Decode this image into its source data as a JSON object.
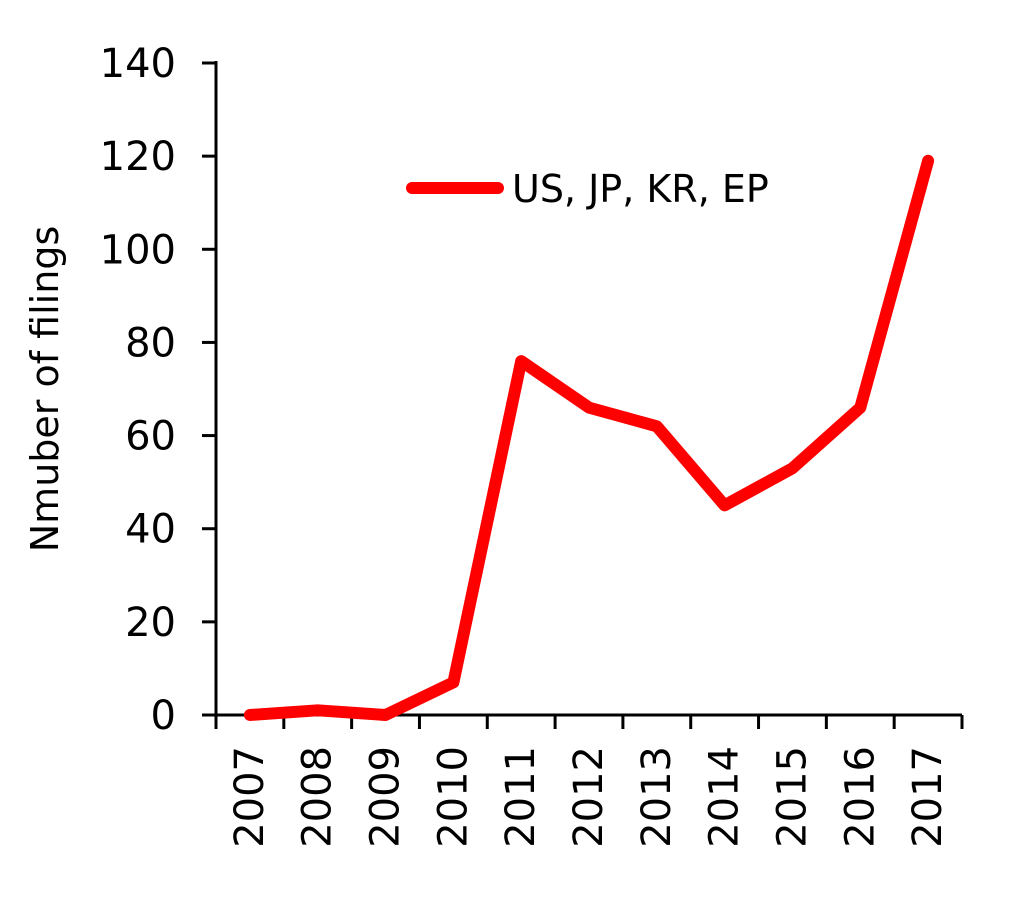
{
  "chart_data": {
    "type": "line",
    "title": "",
    "xlabel": "",
    "ylabel": "Nmuber of filings",
    "categories": [
      "2007",
      "2008",
      "2009",
      "2010",
      "2011",
      "2012",
      "2013",
      "2014",
      "2015",
      "2016",
      "2017"
    ],
    "series": [
      {
        "name": "US, JP, KR, EP",
        "color": "#ff0000",
        "values": [
          0,
          1,
          0,
          7,
          76,
          66,
          62,
          45,
          53,
          66,
          119
        ]
      }
    ],
    "ylim": [
      0,
      140
    ],
    "yticks": [
      "0",
      "20",
      "40",
      "60",
      "80",
      "100",
      "120",
      "140"
    ],
    "grid": false,
    "legend_position": "top-right"
  }
}
